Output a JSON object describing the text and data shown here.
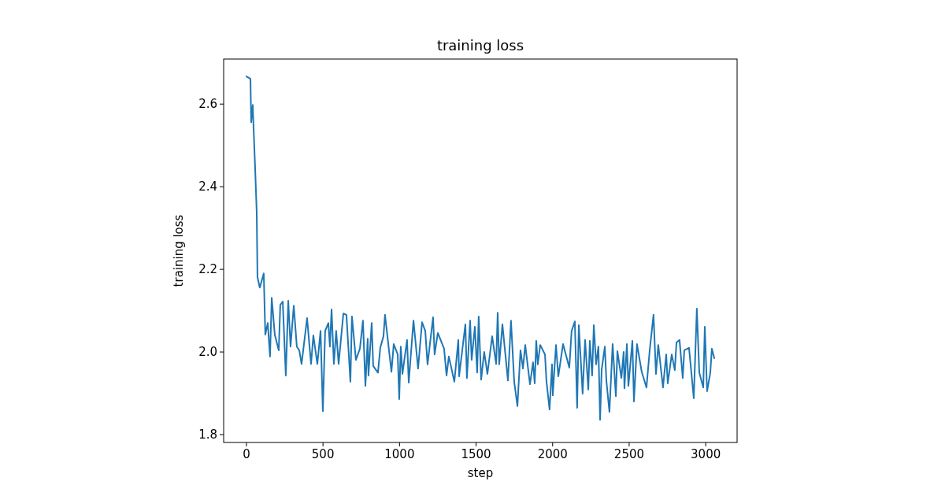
{
  "chart_data": {
    "type": "line",
    "title": "training loss",
    "xlabel": "step",
    "ylabel": "training loss",
    "xlim": [
      -149,
      3205
    ],
    "ylim": [
      1.781,
      2.709
    ],
    "xticks": [
      0,
      500,
      1000,
      1500,
      2000,
      2500,
      3000
    ],
    "yticks": [
      {
        "value": 1.8,
        "label": "1.8"
      },
      {
        "value": 2.0,
        "label": "2.0"
      },
      {
        "value": 2.2,
        "label": "2.2"
      },
      {
        "value": 2.4,
        "label": "2.4"
      },
      {
        "value": 2.6,
        "label": "2.6"
      }
    ],
    "grid": false,
    "marker": "none",
    "line_style": "solid",
    "x": [
      0,
      26,
      31,
      41,
      46,
      57,
      67,
      72,
      87,
      113,
      123,
      139,
      154,
      165,
      185,
      211,
      221,
      237,
      257,
      273,
      288,
      309,
      329,
      345,
      360,
      396,
      422,
      437,
      463,
      484,
      499,
      514,
      535,
      545,
      556,
      571,
      586,
      602,
      633,
      653,
      679,
      689,
      715,
      741,
      761,
      777,
      792,
      797,
      818,
      828,
      859,
      874,
      895,
      905,
      947,
      962,
      988,
      998,
      1008,
      1019,
      1049,
      1060,
      1091,
      1121,
      1147,
      1168,
      1183,
      1219,
      1229,
      1250,
      1291,
      1307,
      1322,
      1358,
      1384,
      1389,
      1430,
      1440,
      1461,
      1471,
      1492,
      1507,
      1517,
      1533,
      1553,
      1574,
      1605,
      1631,
      1641,
      1651,
      1672,
      1708,
      1728,
      1749,
      1770,
      1790,
      1806,
      1821,
      1852,
      1872,
      1883,
      1893,
      1903,
      1919,
      1950,
      1960,
      1980,
      1996,
      2001,
      2022,
      2037,
      2068,
      2109,
      2124,
      2145,
      2160,
      2171,
      2196,
      2212,
      2233,
      2243,
      2258,
      2269,
      2284,
      2299,
      2310,
      2320,
      2341,
      2351,
      2371,
      2392,
      2413,
      2423,
      2449,
      2464,
      2469,
      2485,
      2495,
      2521,
      2531,
      2551,
      2582,
      2613,
      2634,
      2659,
      2675,
      2690,
      2721,
      2742,
      2752,
      2778,
      2798,
      2809,
      2829,
      2850,
      2860,
      2891,
      2922,
      2942,
      2958,
      2984,
      2994,
      3009,
      3030,
      3040,
      3056
    ],
    "series": [
      {
        "color": "#1f77b4",
        "values": [
          2.667,
          2.661,
          2.556,
          2.598,
          2.547,
          2.442,
          2.337,
          2.181,
          2.156,
          2.19,
          2.042,
          2.07,
          1.989,
          2.131,
          2.042,
          2.004,
          2.114,
          2.122,
          1.943,
          2.124,
          2.013,
          2.112,
          2.013,
          2.004,
          1.971,
          2.082,
          1.971,
          2.04,
          1.971,
          2.051,
          1.857,
          2.051,
          2.07,
          2.013,
          2.103,
          1.971,
          2.051,
          1.971,
          2.093,
          2.09,
          1.928,
          2.086,
          1.981,
          2.008,
          2.076,
          1.918,
          2.032,
          1.943,
          2.07,
          1.966,
          1.95,
          2.01,
          2.038,
          2.09,
          1.952,
          2.019,
          1.994,
          1.886,
          2.013,
          1.947,
          2.029,
          1.926,
          2.076,
          1.96,
          2.072,
          2.051,
          1.97,
          2.084,
          1.994,
          2.046,
          2.008,
          1.943,
          1.989,
          1.928,
          2.029,
          1.941,
          2.067,
          1.937,
          2.076,
          1.981,
          2.061,
          1.95,
          2.086,
          1.933,
          2.0,
          1.947,
          2.038,
          1.971,
          2.095,
          1.97,
          2.067,
          1.931,
          2.076,
          1.928,
          1.869,
          2.004,
          1.96,
          2.017,
          1.922,
          1.975,
          1.924,
          2.027,
          1.97,
          2.017,
          1.994,
          1.928,
          1.861,
          1.97,
          1.895,
          2.017,
          1.941,
          2.019,
          1.962,
          2.051,
          2.074,
          1.865,
          2.065,
          1.899,
          2.029,
          1.909,
          2.027,
          1.943,
          2.065,
          1.97,
          2.013,
          1.836,
          1.956,
          2.013,
          1.931,
          1.855,
          2.019,
          1.893,
          2.002,
          1.937,
          2.0,
          1.912,
          2.019,
          1.918,
          2.027,
          1.88,
          2.019,
          1.952,
          1.914,
          2.004,
          2.09,
          1.947,
          2.017,
          1.914,
          1.994,
          1.924,
          1.994,
          1.956,
          2.023,
          2.029,
          1.937,
          2.004,
          2.01,
          1.888,
          2.105,
          1.95,
          1.914,
          2.061,
          1.905,
          1.95,
          2.008,
          1.985
        ]
      }
    ]
  }
}
